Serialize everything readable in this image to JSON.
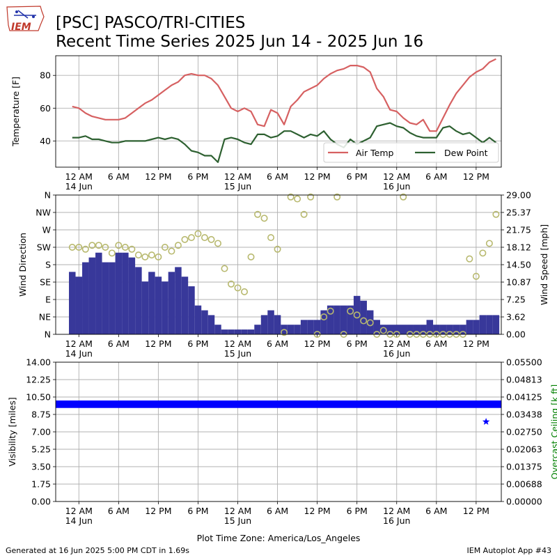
{
  "header": {
    "title_line1": "[PSC] PASCO/TRI-CITIES",
    "title_line2": "Recent Time Series 2025 Jun 14 - 2025 Jun 16",
    "logo_text": "IEM"
  },
  "footer": {
    "generated": "Generated at 16 Jun 2025 5:00 PM CDT in 1.69s",
    "app": "IEM Autoplot App #43",
    "timezone": "Plot Time Zone: America/Los_Angeles"
  },
  "colors": {
    "air_temp": "#d66061",
    "dew_point": "#2d6030",
    "wind_bar": "#38389a",
    "wind_dir_marker": "#b8b96f",
    "visibility": "#0000ff",
    "ceiling_label": "#008000",
    "grid": "#b0b0b0"
  },
  "chart_data": [
    {
      "type": "line",
      "ylabel": "Temperature [F]",
      "x_hours": [
        -1,
        0,
        1,
        2,
        3,
        4,
        5,
        6,
        7,
        8,
        9,
        10,
        11,
        12,
        13,
        14,
        15,
        16,
        17,
        18,
        19,
        20,
        21,
        22,
        23,
        24,
        25,
        26,
        27,
        28,
        29,
        30,
        31,
        32,
        33,
        34,
        35,
        36,
        37,
        38,
        39,
        40,
        41,
        42,
        43,
        44,
        45,
        46,
        47,
        48,
        49,
        50,
        51,
        52,
        53,
        54,
        55,
        56,
        57,
        58,
        59,
        60,
        61,
        62,
        63
      ],
      "y_ticks": [
        40,
        60,
        80
      ],
      "ylim": [
        24,
        92
      ],
      "series": [
        {
          "name": "Air Temp",
          "values": [
            61,
            60,
            57,
            55,
            54,
            53,
            53,
            53,
            54,
            57,
            60,
            63,
            65,
            68,
            71,
            74,
            76,
            80,
            81,
            80,
            80,
            78,
            74,
            67,
            60,
            58,
            60,
            58,
            50,
            49,
            59,
            57,
            50,
            61,
            65,
            70,
            72,
            74,
            78,
            81,
            83,
            84,
            86,
            86,
            85,
            82,
            72,
            67,
            59,
            58,
            54,
            51,
            50,
            53,
            46,
            46,
            54,
            62,
            69,
            74,
            79,
            82,
            84,
            88,
            90
          ]
        },
        {
          "name": "Dew Point",
          "values": [
            42,
            42,
            43,
            41,
            41,
            40,
            39,
            39,
            40,
            40,
            40,
            40,
            41,
            42,
            41,
            42,
            41,
            38,
            34,
            33,
            31,
            31,
            27,
            41,
            42,
            41,
            39,
            38,
            44,
            44,
            42,
            43,
            46,
            46,
            44,
            42,
            44,
            43,
            46,
            41,
            38,
            36,
            41,
            38,
            40,
            42,
            49,
            50,
            51,
            49,
            48,
            45,
            43,
            42,
            42,
            42,
            48,
            49,
            46,
            44,
            45,
            42,
            39,
            42,
            39
          ]
        }
      ],
      "legend_placement": "lower-right",
      "x_tick_labels": [
        "12 AM",
        "6 AM",
        "12 PM",
        "6 PM",
        "12 AM",
        "6 AM",
        "12 PM",
        "6 PM",
        "12 AM",
        "6 AM",
        "12 PM"
      ],
      "x_date_labels": [
        "14 Jun",
        "15 Jun",
        "16 Jun"
      ]
    },
    {
      "type": "bar",
      "ylabel_left": "Wind Direction",
      "ylabel_right": "Wind Speed [mph]",
      "dir_ticks": [
        "N",
        "NE",
        "E",
        "SE",
        "S",
        "SW",
        "W",
        "NW",
        "N"
      ],
      "speed_ticks": [
        "0.00",
        "3.62",
        "7.25",
        "10.87",
        "14.50",
        "18.12",
        "21.75",
        "25.37",
        "29.00"
      ],
      "speed_ylim": [
        0,
        29
      ],
      "wind_speed_hourly_mph": [
        13,
        12,
        15,
        16,
        17,
        15,
        15,
        17,
        17,
        16,
        14,
        11,
        13,
        12,
        11,
        13,
        14,
        12,
        10,
        6,
        5,
        4,
        2,
        1,
        1,
        1,
        1,
        1,
        2,
        4,
        5,
        4,
        2,
        2,
        2,
        3,
        3,
        3,
        5,
        6,
        6,
        6,
        6,
        8,
        7,
        5,
        3,
        2,
        2,
        2,
        2,
        2,
        2,
        2,
        3,
        2,
        2,
        2,
        2,
        2,
        3,
        3,
        4,
        4,
        4
      ],
      "wind_dir_deg": [
        225,
        225,
        220,
        230,
        230,
        225,
        210,
        230,
        225,
        220,
        205,
        200,
        205,
        200,
        225,
        215,
        230,
        245,
        250,
        260,
        250,
        245,
        235,
        170,
        130,
        120,
        110,
        200,
        310,
        300,
        250,
        220,
        5,
        355,
        350,
        310,
        355,
        0,
        45,
        60,
        355,
        0,
        60,
        50,
        35,
        30,
        0,
        10,
        0,
        0,
        355,
        0,
        0,
        0,
        0,
        0,
        0,
        0,
        0,
        0,
        195,
        150,
        210,
        235,
        310
      ],
      "x_tick_labels": [
        "12 AM",
        "6 AM",
        "12 PM",
        "6 PM",
        "12 AM",
        "6 AM",
        "12 PM",
        "6 PM",
        "12 AM",
        "6 AM",
        "12 PM"
      ],
      "x_date_labels": [
        "14 Jun",
        "15 Jun",
        "16 Jun"
      ]
    },
    {
      "type": "bar",
      "ylabel_left": "Visibility [miles]",
      "ylabel_right": "Overcast Ceiling [k ft]",
      "vis_ticks": [
        "0.00",
        "1.75",
        "3.50",
        "5.25",
        "7.00",
        "8.75",
        "10.50",
        "12.25",
        "14.00"
      ],
      "ceiling_ticks": [
        "0.00000",
        "0.00688",
        "0.01375",
        "0.02063",
        "0.02750",
        "0.03438",
        "0.04125",
        "0.04813",
        "0.05500"
      ],
      "vis_ylim": [
        0,
        14
      ],
      "visibility_miles": 10,
      "ceiling_point": {
        "x_hour": 61.5,
        "ceiling_kft": 0.0315
      },
      "x_tick_labels": [
        "12 AM",
        "6 AM",
        "12 PM",
        "6 PM",
        "12 AM",
        "6 AM",
        "12 PM",
        "6 PM",
        "12 AM",
        "6 AM",
        "12 PM"
      ],
      "x_date_labels": [
        "14 Jun",
        "15 Jun",
        "16 Jun"
      ]
    }
  ]
}
